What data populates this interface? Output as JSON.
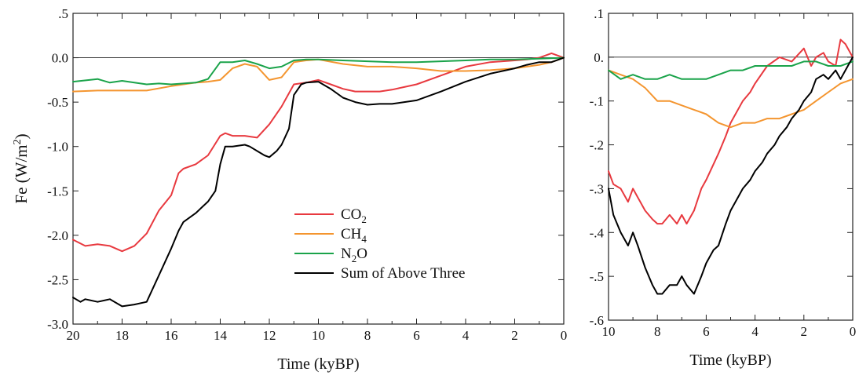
{
  "chart_data": [
    {
      "type": "line",
      "title": "",
      "xlabel": "Time (kyBP)",
      "ylabel": "Fe (W/m²)",
      "xlim": [
        20,
        0
      ],
      "ylim": [
        -3.0,
        0.5
      ],
      "x_ticks": [
        20,
        18,
        16,
        14,
        12,
        10,
        8,
        6,
        4,
        2,
        0
      ],
      "y_ticks": [
        0.5,
        0.0,
        -0.5,
        -1.0,
        -1.5,
        -2.0,
        -2.5,
        -3.0
      ],
      "y_tick_labels": [
        ".5",
        "0.0",
        "-0.5",
        "-1.0",
        "-1.5",
        "-2.0",
        "-2.5",
        "-3.0"
      ],
      "reference_line_y": 0,
      "legend_position": "lower-center",
      "legend": [
        {
          "base": "CO",
          "sub": "2",
          "color": "#e8393f"
        },
        {
          "base": "CH",
          "sub": "4",
          "color": "#f4952f"
        },
        {
          "base": "N",
          "sub": "2",
          "tail": "O",
          "color": "#1aa34a"
        },
        {
          "base": "Sum of Above Three",
          "sub": "",
          "color": "#000000"
        }
      ],
      "series": [
        {
          "key": "co2",
          "color": "#e8393f",
          "x": [
            20,
            19.5,
            19,
            18.5,
            18,
            17.5,
            17,
            16.5,
            16,
            15.7,
            15.5,
            15,
            14.5,
            14,
            13.8,
            13.5,
            13,
            12.5,
            12,
            11.5,
            11,
            10.5,
            10,
            9.5,
            9,
            8.5,
            8,
            7.5,
            7,
            6.5,
            6,
            5,
            4,
            3,
            2,
            1.5,
            1,
            0.5,
            0
          ],
          "y": [
            -2.05,
            -2.12,
            -2.1,
            -2.12,
            -2.18,
            -2.12,
            -1.98,
            -1.72,
            -1.55,
            -1.3,
            -1.25,
            -1.2,
            -1.1,
            -0.88,
            -0.85,
            -0.88,
            -0.88,
            -0.9,
            -0.75,
            -0.55,
            -0.3,
            -0.28,
            -0.25,
            -0.3,
            -0.35,
            -0.38,
            -0.38,
            -0.38,
            -0.36,
            -0.33,
            -0.3,
            -0.2,
            -0.1,
            -0.05,
            -0.03,
            -0.02,
            0.0,
            0.05,
            0.0
          ]
        },
        {
          "key": "ch4",
          "color": "#f4952f",
          "x": [
            20,
            19,
            18,
            17,
            16,
            15,
            14.5,
            14,
            13.5,
            13,
            12.5,
            12,
            11.5,
            11,
            10.5,
            10,
            9,
            8,
            7,
            6,
            5,
            4,
            3,
            2,
            1,
            0.5,
            0
          ],
          "y": [
            -0.38,
            -0.37,
            -0.37,
            -0.37,
            -0.32,
            -0.28,
            -0.27,
            -0.25,
            -0.12,
            -0.07,
            -0.1,
            -0.25,
            -0.22,
            -0.05,
            -0.03,
            -0.02,
            -0.07,
            -0.1,
            -0.1,
            -0.12,
            -0.15,
            -0.15,
            -0.14,
            -0.12,
            -0.08,
            -0.05,
            0.0
          ]
        },
        {
          "key": "n2o",
          "color": "#1aa34a",
          "x": [
            20,
            19,
            18.5,
            18,
            17,
            16.5,
            16,
            15,
            14.5,
            14,
            13.5,
            13,
            12.5,
            12,
            11.5,
            11,
            10.5,
            10,
            9,
            8,
            7,
            6,
            5,
            4,
            3,
            2,
            1,
            0
          ],
          "y": [
            -0.27,
            -0.24,
            -0.28,
            -0.26,
            -0.3,
            -0.29,
            -0.3,
            -0.28,
            -0.24,
            -0.05,
            -0.05,
            -0.03,
            -0.07,
            -0.12,
            -0.1,
            -0.03,
            -0.02,
            -0.02,
            -0.03,
            -0.04,
            -0.05,
            -0.05,
            -0.04,
            -0.03,
            -0.02,
            -0.02,
            -0.01,
            0.0
          ]
        },
        {
          "key": "sum",
          "color": "#000000",
          "x": [
            20,
            19.7,
            19.5,
            19,
            18.5,
            18,
            17.5,
            17,
            16.5,
            16,
            15.7,
            15.5,
            15,
            14.5,
            14.2,
            14,
            13.8,
            13.5,
            13,
            12.8,
            12.5,
            12.2,
            12,
            11.7,
            11.5,
            11.2,
            11,
            10.7,
            10.5,
            10,
            9.5,
            9,
            8.5,
            8,
            7.5,
            7,
            6.5,
            6,
            5,
            4,
            3,
            2,
            1.5,
            1,
            0.5,
            0
          ],
          "y": [
            -2.7,
            -2.75,
            -2.72,
            -2.75,
            -2.72,
            -2.8,
            -2.78,
            -2.75,
            -2.45,
            -2.15,
            -1.95,
            -1.85,
            -1.75,
            -1.62,
            -1.5,
            -1.2,
            -1.0,
            -1.0,
            -0.98,
            -1.0,
            -1.05,
            -1.1,
            -1.12,
            -1.05,
            -0.98,
            -0.8,
            -0.42,
            -0.3,
            -0.28,
            -0.27,
            -0.35,
            -0.45,
            -0.5,
            -0.53,
            -0.52,
            -0.52,
            -0.5,
            -0.48,
            -0.38,
            -0.27,
            -0.18,
            -0.12,
            -0.08,
            -0.05,
            -0.05,
            0.0
          ]
        }
      ]
    },
    {
      "type": "line",
      "title": "",
      "xlabel": "Time (kyBP)",
      "ylabel": "",
      "xlim": [
        10,
        0
      ],
      "ylim": [
        -0.6,
        0.1
      ],
      "x_ticks": [
        10,
        8,
        6,
        4,
        2,
        0
      ],
      "y_ticks": [
        0.1,
        0.0,
        -0.1,
        -0.2,
        -0.3,
        -0.4,
        -0.5,
        -0.6
      ],
      "y_tick_labels": [
        ".1",
        "0.",
        "-.1",
        "-.2",
        "-.3",
        "-.4",
        "-.5",
        "-.6"
      ],
      "reference_line_y": 0,
      "series": [
        {
          "key": "co2",
          "color": "#e8393f",
          "x": [
            10,
            9.8,
            9.5,
            9.2,
            9,
            8.8,
            8.5,
            8.2,
            8,
            7.8,
            7.5,
            7.2,
            7,
            6.8,
            6.5,
            6.2,
            6,
            5.5,
            5.2,
            5,
            4.5,
            4.2,
            4,
            3.5,
            3,
            2.5,
            2,
            1.7,
            1.5,
            1.2,
            1,
            0.7,
            0.5,
            0.3,
            0
          ],
          "y": [
            -0.26,
            -0.29,
            -0.3,
            -0.33,
            -0.3,
            -0.32,
            -0.35,
            -0.37,
            -0.38,
            -0.38,
            -0.36,
            -0.38,
            -0.36,
            -0.38,
            -0.35,
            -0.3,
            -0.28,
            -0.22,
            -0.18,
            -0.15,
            -0.1,
            -0.08,
            -0.06,
            -0.02,
            0.0,
            -0.01,
            0.02,
            -0.02,
            0.0,
            0.01,
            -0.01,
            -0.02,
            0.04,
            0.03,
            0.0
          ]
        },
        {
          "key": "ch4",
          "color": "#f4952f",
          "x": [
            10,
            9.5,
            9,
            8.5,
            8,
            7.5,
            7,
            6.5,
            6,
            5.5,
            5,
            4.5,
            4,
            3.5,
            3,
            2.5,
            2,
            1.5,
            1,
            0.5,
            0
          ],
          "y": [
            -0.03,
            -0.04,
            -0.05,
            -0.07,
            -0.1,
            -0.1,
            -0.11,
            -0.12,
            -0.13,
            -0.15,
            -0.16,
            -0.15,
            -0.15,
            -0.14,
            -0.14,
            -0.13,
            -0.12,
            -0.1,
            -0.08,
            -0.06,
            -0.05
          ]
        },
        {
          "key": "n2o",
          "color": "#1aa34a",
          "x": [
            10,
            9.5,
            9,
            8.5,
            8,
            7.5,
            7,
            6.5,
            6,
            5.5,
            5,
            4.5,
            4,
            3.5,
            3,
            2.5,
            2,
            1.5,
            1,
            0.5,
            0
          ],
          "y": [
            -0.03,
            -0.05,
            -0.04,
            -0.05,
            -0.05,
            -0.04,
            -0.05,
            -0.05,
            -0.05,
            -0.04,
            -0.03,
            -0.03,
            -0.02,
            -0.02,
            -0.02,
            -0.02,
            -0.01,
            -0.01,
            -0.02,
            -0.02,
            -0.01
          ]
        },
        {
          "key": "sum",
          "color": "#000000",
          "x": [
            10,
            9.8,
            9.5,
            9.2,
            9,
            8.8,
            8.5,
            8.2,
            8,
            7.8,
            7.5,
            7.2,
            7,
            6.8,
            6.5,
            6.2,
            6,
            5.7,
            5.5,
            5.2,
            5,
            4.7,
            4.5,
            4.2,
            4,
            3.7,
            3.5,
            3.2,
            3,
            2.7,
            2.5,
            2.2,
            2,
            1.7,
            1.5,
            1.2,
            1,
            0.7,
            0.5,
            0.3,
            0
          ],
          "y": [
            -0.3,
            -0.36,
            -0.4,
            -0.43,
            -0.4,
            -0.43,
            -0.48,
            -0.52,
            -0.54,
            -0.54,
            -0.52,
            -0.52,
            -0.5,
            -0.52,
            -0.54,
            -0.5,
            -0.47,
            -0.44,
            -0.43,
            -0.38,
            -0.35,
            -0.32,
            -0.3,
            -0.28,
            -0.26,
            -0.24,
            -0.22,
            -0.2,
            -0.18,
            -0.16,
            -0.14,
            -0.12,
            -0.1,
            -0.08,
            -0.05,
            -0.04,
            -0.05,
            -0.03,
            -0.05,
            -0.03,
            0.0
          ]
        }
      ]
    }
  ]
}
